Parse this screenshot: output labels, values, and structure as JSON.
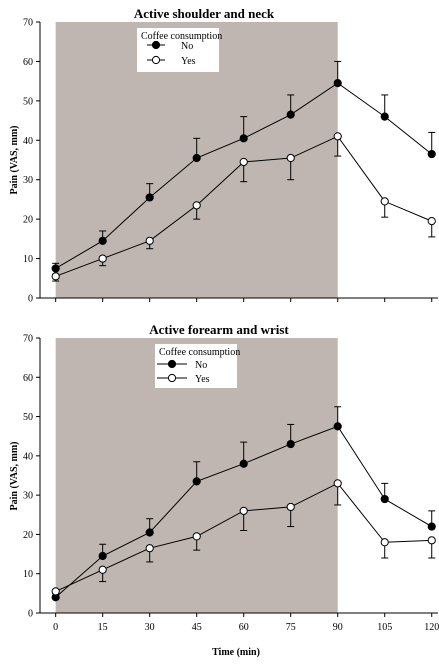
{
  "chart_data": [
    {
      "type": "line",
      "title": "Active shoulder and neck",
      "xlabel": "",
      "ylabel": "Pain (VAS, mm)",
      "x": [
        0,
        15,
        30,
        45,
        60,
        75,
        90,
        105,
        120
      ],
      "xlim": [
        -5,
        122
      ],
      "ylim": [
        0,
        70
      ],
      "yticks": [
        0,
        10,
        20,
        30,
        40,
        50,
        60,
        70
      ],
      "xticks": [],
      "shaded_region": [
        0,
        90
      ],
      "shade_color": "#c0b6b1",
      "legend": {
        "title": "Coffee consumption",
        "position": "top-left"
      },
      "series": [
        {
          "name": "No",
          "marker": "filled-circle",
          "values": [
            7.5,
            14.5,
            25.5,
            35.5,
            40.5,
            46.5,
            54.5,
            46,
            36.5
          ],
          "errors": [
            1.3,
            2.5,
            3.5,
            5,
            5.5,
            5,
            5.5,
            5.5,
            5.5
          ]
        },
        {
          "name": "Yes",
          "marker": "open-circle",
          "values": [
            5.5,
            10,
            14.5,
            23.5,
            34.5,
            35.5,
            41,
            24.5,
            19.5
          ],
          "errors": [
            1.2,
            1.8,
            2,
            3.5,
            5,
            5.5,
            5,
            4,
            4
          ]
        }
      ]
    },
    {
      "type": "line",
      "title": "Active forearm and wrist",
      "xlabel": "Time (min)",
      "ylabel": "Pain (VAS, mm)",
      "x": [
        0,
        15,
        30,
        45,
        60,
        75,
        90,
        105,
        120
      ],
      "xlim": [
        -5,
        122
      ],
      "ylim": [
        0,
        70
      ],
      "yticks": [
        0,
        10,
        20,
        30,
        40,
        50,
        60,
        70
      ],
      "xticks": [
        0,
        15,
        30,
        45,
        60,
        75,
        90,
        105,
        120
      ],
      "shaded_region": [
        0,
        90
      ],
      "shade_color": "#c0b6b1",
      "legend": {
        "title": "Coffee consumption",
        "position": "top-center"
      },
      "series": [
        {
          "name": "No",
          "marker": "filled-circle",
          "values": [
            4,
            14.5,
            20.5,
            33.5,
            38,
            43,
            47.5,
            29,
            22
          ],
          "errors": [
            1,
            3,
            3.5,
            5,
            5.5,
            5,
            5,
            4,
            4
          ]
        },
        {
          "name": "Yes",
          "marker": "open-circle",
          "values": [
            5.5,
            11,
            16.5,
            19.5,
            26,
            27,
            33,
            18,
            18.5
          ],
          "errors": [
            1,
            3,
            3.5,
            3.5,
            5,
            5,
            5.5,
            4,
            4.5
          ]
        }
      ]
    }
  ]
}
